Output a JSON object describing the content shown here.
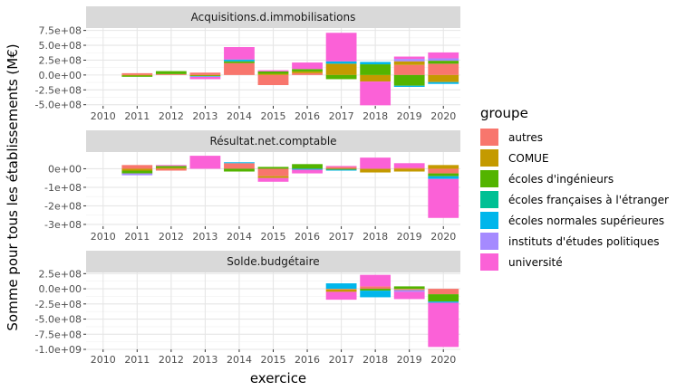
{
  "chart_data": {
    "type": "bar",
    "stacked": true,
    "xlabel": "exercice",
    "ylabel": "Somme pour tous les établissements (M€)",
    "x": [
      "2010",
      "2011",
      "2012",
      "2013",
      "2014",
      "2015",
      "2016",
      "2017",
      "2018",
      "2019",
      "2020"
    ],
    "legend": {
      "title": "groupe",
      "position": "right",
      "entries": [
        {
          "name": "autres",
          "color": "#F8766D"
        },
        {
          "name": "COMUE",
          "color": "#C49A00"
        },
        {
          "name": "écoles d'ingénieurs",
          "color": "#53B400"
        },
        {
          "name": "écoles françaises à l'étranger",
          "color": "#00C094"
        },
        {
          "name": "écoles normales supérieures",
          "color": "#00B6EB"
        },
        {
          "name": "instituts d'études politiques",
          "color": "#A58AFF"
        },
        {
          "name": "université",
          "color": "#FB61D7"
        }
      ]
    },
    "panels": [
      {
        "title": "Acquisitions.d.immobilisations",
        "ylim": [
          -520000000,
          790000000
        ],
        "yticks": [
          {
            "v": 750000000,
            "label": "7.5e+08"
          },
          {
            "v": 500000000,
            "label": "5.0e+08"
          },
          {
            "v": 250000000,
            "label": "2.5e+08"
          },
          {
            "v": 0,
            "label": "0.0e+00"
          },
          {
            "v": -250000000,
            "label": "-2.5e+08"
          },
          {
            "v": -500000000,
            "label": "-5.0e+08"
          }
        ],
        "series": [
          {
            "name": "autres",
            "values": [
              0,
              30000000,
              15000000,
              40000000,
              200000000,
              -170000000,
              30000000,
              0,
              0,
              170000000,
              190000000
            ]
          },
          {
            "name": "COMUE",
            "values": [
              0,
              -10000000,
              0,
              -10000000,
              0,
              20000000,
              30000000,
              190000000,
              -110000000,
              60000000,
              -120000000
            ]
          },
          {
            "name": "écoles d'ingénieurs",
            "values": [
              0,
              -20000000,
              50000000,
              -10000000,
              30000000,
              40000000,
              40000000,
              -70000000,
              180000000,
              -180000000,
              50000000
            ]
          },
          {
            "name": "écoles françaises à l'étranger",
            "values": [
              0,
              0,
              0,
              0,
              0,
              0,
              0,
              0,
              0,
              0,
              0
            ]
          },
          {
            "name": "écoles normales supérieures",
            "values": [
              0,
              0,
              0,
              -10000000,
              30000000,
              0,
              0,
              40000000,
              40000000,
              -20000000,
              -30000000
            ]
          },
          {
            "name": "instituts d'études politiques",
            "values": [
              0,
              0,
              0,
              0,
              0,
              0,
              0,
              0,
              0,
              40000000,
              40000000
            ]
          },
          {
            "name": "université",
            "values": [
              0,
              0,
              0,
              -40000000,
              210000000,
              20000000,
              110000000,
              480000000,
              -400000000,
              40000000,
              100000000
            ]
          }
        ]
      },
      {
        "title": "Résultat.net.comptable",
        "ylim": [
          -310000000,
          90000000
        ],
        "yticks": [
          {
            "v": 0,
            "label": "0e+00"
          },
          {
            "v": -100000000,
            "label": "-1e+08"
          },
          {
            "v": -200000000,
            "label": "-2e+08"
          },
          {
            "v": -300000000,
            "label": "-3e+08"
          }
        ],
        "series": [
          {
            "name": "autres",
            "values": [
              0,
              20000000,
              -10000000,
              0,
              30000000,
              -40000000,
              0,
              10000000,
              0,
              5000000,
              -25000000
            ]
          },
          {
            "name": "COMUE",
            "values": [
              0,
              -10000000,
              5000000,
              0,
              0,
              -10000000,
              0,
              0,
              -20000000,
              -15000000,
              20000000
            ]
          },
          {
            "name": "écoles d'ingénieurs",
            "values": [
              0,
              -15000000,
              10000000,
              0,
              -15000000,
              10000000,
              25000000,
              -5000000,
              0,
              0,
              -15000000
            ]
          },
          {
            "name": "écoles françaises à l'étranger",
            "values": [
              0,
              0,
              0,
              0,
              0,
              0,
              0,
              0,
              0,
              0,
              0
            ]
          },
          {
            "name": "écoles normales supérieures",
            "values": [
              0,
              0,
              0,
              0,
              5000000,
              0,
              -5000000,
              -5000000,
              0,
              0,
              -15000000
            ]
          },
          {
            "name": "instituts d'études politiques",
            "values": [
              0,
              -10000000,
              0,
              0,
              0,
              0,
              0,
              0,
              0,
              0,
              0
            ]
          },
          {
            "name": "université",
            "values": [
              0,
              0,
              5000000,
              70000000,
              0,
              -20000000,
              -20000000,
              5000000,
              60000000,
              25000000,
              -210000000
            ]
          }
        ]
      },
      {
        "title": "Solde.budgétaire",
        "ylim": [
          -1000000000,
          270000000
        ],
        "yticks": [
          {
            "v": 250000000,
            "label": "2.5e+08"
          },
          {
            "v": 0,
            "label": "0.0e+00"
          },
          {
            "v": -250000000,
            "label": "-2.5e+08"
          },
          {
            "v": -500000000,
            "label": "-5.0e+08"
          },
          {
            "v": -750000000,
            "label": "-7.5e+08"
          },
          {
            "v": -1000000000,
            "label": "-1.0e+09"
          }
        ],
        "series": [
          {
            "name": "autres",
            "values": [
              0,
              0,
              0,
              0,
              0,
              0,
              0,
              -10000000,
              40000000,
              -10000000,
              -90000000
            ]
          },
          {
            "name": "COMUE",
            "values": [
              0,
              0,
              0,
              0,
              0,
              0,
              0,
              -40000000,
              0,
              -10000000,
              0
            ]
          },
          {
            "name": "écoles d'ingénieurs",
            "values": [
              0,
              0,
              0,
              0,
              0,
              0,
              0,
              0,
              -30000000,
              40000000,
              -120000000
            ]
          },
          {
            "name": "écoles françaises à l'étranger",
            "values": [
              0,
              0,
              0,
              0,
              0,
              0,
              0,
              0,
              0,
              0,
              0
            ]
          },
          {
            "name": "écoles normales supérieures",
            "values": [
              0,
              0,
              0,
              0,
              0,
              0,
              0,
              90000000,
              -110000000,
              0,
              -20000000
            ]
          },
          {
            "name": "instituts d'études politiques",
            "values": [
              0,
              0,
              0,
              0,
              0,
              0,
              0,
              0,
              0,
              -30000000,
              0
            ]
          },
          {
            "name": "université",
            "values": [
              0,
              0,
              0,
              0,
              0,
              0,
              0,
              -130000000,
              190000000,
              -120000000,
              -730000000
            ]
          }
        ]
      }
    ]
  }
}
